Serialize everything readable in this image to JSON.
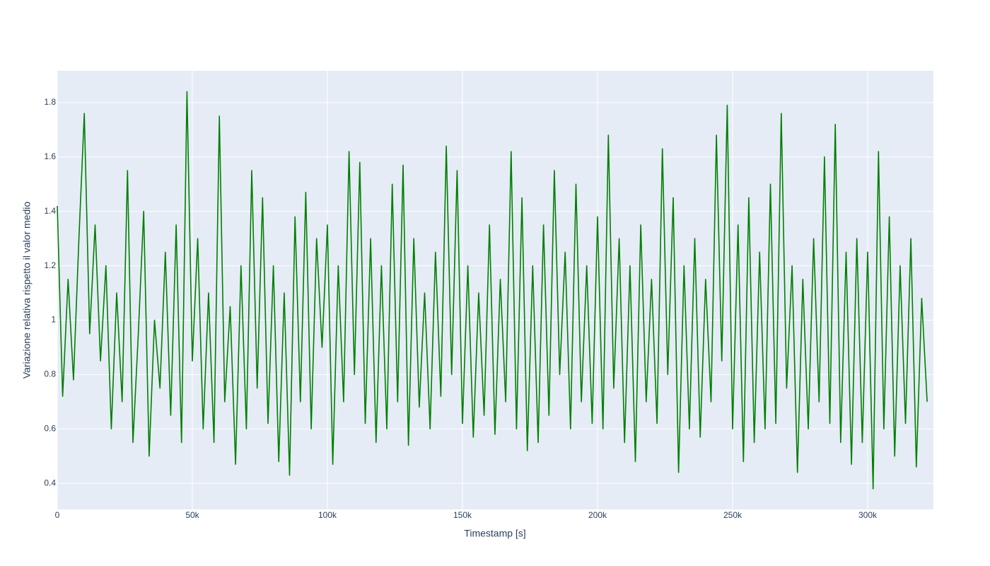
{
  "chart_data": {
    "type": "line",
    "x_label": "Timestamp [s]",
    "y_label": "Variazione relativa rispetto il valor medio",
    "color": "#008000",
    "grid": true,
    "xlim": [
      0,
      324340
    ],
    "ylim": [
      0.304,
      1.917
    ],
    "xticks": [
      0,
      {
        "value": 50000,
        "label": "50k"
      },
      {
        "value": 100000,
        "label": "100k"
      },
      {
        "value": 150000,
        "label": "150k"
      },
      {
        "value": 200000,
        "label": "200k"
      },
      {
        "value": 250000,
        "label": "250k"
      },
      {
        "value": 300000,
        "label": "300k"
      }
    ],
    "yticks": [
      0.4,
      0.6,
      0.8,
      1,
      1.2,
      1.4,
      1.6,
      1.8
    ],
    "x": [
      0,
      2000,
      4000,
      6000,
      8000,
      10000,
      12000,
      14000,
      16000,
      18000,
      20000,
      22000,
      24000,
      26000,
      28000,
      30000,
      32000,
      34000,
      36000,
      38000,
      40000,
      42000,
      44000,
      46000,
      48000,
      50000,
      52000,
      54000,
      56000,
      58000,
      60000,
      62000,
      64000,
      66000,
      68000,
      70000,
      72000,
      74000,
      76000,
      78000,
      80000,
      82000,
      84000,
      86000,
      88000,
      90000,
      92000,
      94000,
      96000,
      98000,
      100000,
      102000,
      104000,
      106000,
      108000,
      110000,
      112000,
      114000,
      116000,
      118000,
      120000,
      122000,
      124000,
      126000,
      128000,
      130000,
      132000,
      134000,
      136000,
      138000,
      140000,
      142000,
      144000,
      146000,
      148000,
      150000,
      152000,
      154000,
      156000,
      158000,
      160000,
      162000,
      164000,
      166000,
      168000,
      170000,
      172000,
      174000,
      176000,
      178000,
      180000,
      182000,
      184000,
      186000,
      188000,
      190000,
      192000,
      194000,
      196000,
      198000,
      200000,
      202000,
      204000,
      206000,
      208000,
      210000,
      212000,
      214000,
      216000,
      218000,
      220000,
      222000,
      224000,
      226000,
      228000,
      230000,
      232000,
      234000,
      236000,
      238000,
      240000,
      242000,
      244000,
      246000,
      248000,
      250000,
      252000,
      254000,
      256000,
      258000,
      260000,
      262000,
      264000,
      266000,
      268000,
      270000,
      272000,
      274000,
      276000,
      278000,
      280000,
      282000,
      284000,
      286000,
      288000,
      290000,
      292000,
      294000,
      296000,
      298000,
      300000,
      302000,
      304000,
      306000,
      308000,
      310000,
      312000,
      314000,
      316000,
      318000,
      320000,
      322000
    ],
    "values": [
      1.42,
      0.72,
      1.15,
      0.78,
      1.3,
      1.76,
      0.95,
      1.35,
      0.85,
      1.2,
      0.6,
      1.1,
      0.7,
      1.55,
      0.55,
      0.95,
      1.4,
      0.5,
      1.0,
      0.75,
      1.25,
      0.65,
      1.35,
      0.55,
      1.84,
      0.85,
      1.3,
      0.6,
      1.1,
      0.55,
      1.75,
      0.7,
      1.05,
      0.47,
      1.2,
      0.6,
      1.55,
      0.75,
      1.45,
      0.62,
      1.2,
      0.48,
      1.1,
      0.43,
      1.38,
      0.7,
      1.47,
      0.6,
      1.3,
      0.9,
      1.35,
      0.47,
      1.2,
      0.7,
      1.62,
      0.8,
      1.58,
      0.62,
      1.3,
      0.55,
      1.2,
      0.6,
      1.5,
      0.7,
      1.57,
      0.54,
      1.3,
      0.68,
      1.1,
      0.6,
      1.25,
      0.72,
      1.64,
      0.8,
      1.55,
      0.62,
      1.2,
      0.57,
      1.1,
      0.65,
      1.35,
      0.58,
      1.15,
      0.7,
      1.62,
      0.6,
      1.45,
      0.52,
      1.2,
      0.55,
      1.35,
      0.65,
      1.55,
      0.8,
      1.25,
      0.6,
      1.5,
      0.7,
      1.2,
      0.62,
      1.38,
      0.6,
      1.68,
      0.75,
      1.3,
      0.55,
      1.2,
      0.48,
      1.35,
      0.7,
      1.15,
      0.62,
      1.63,
      0.8,
      1.45,
      0.44,
      1.2,
      0.6,
      1.3,
      0.57,
      1.15,
      0.7,
      1.68,
      0.85,
      1.79,
      0.6,
      1.35,
      0.48,
      1.45,
      0.55,
      1.25,
      0.6,
      1.5,
      0.62,
      1.76,
      0.75,
      1.2,
      0.44,
      1.15,
      0.6,
      1.3,
      0.7,
      1.6,
      0.62,
      1.72,
      0.55,
      1.25,
      0.47,
      1.3,
      0.55,
      1.25,
      0.38,
      1.62,
      0.6,
      1.38,
      0.5,
      1.2,
      0.62,
      1.3,
      0.46,
      1.08,
      0.7
    ]
  }
}
